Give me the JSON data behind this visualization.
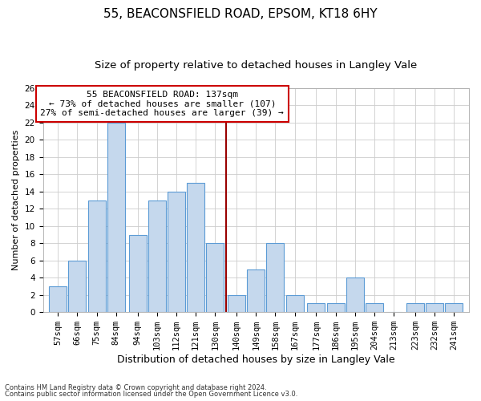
{
  "title1": "55, BEACONSFIELD ROAD, EPSOM, KT18 6HY",
  "title2": "Size of property relative to detached houses in Langley Vale",
  "xlabel": "Distribution of detached houses by size in Langley Vale",
  "ylabel": "Number of detached properties",
  "footnote1": "Contains HM Land Registry data © Crown copyright and database right 2024.",
  "footnote2": "Contains public sector information licensed under the Open Government Licence v3.0.",
  "annotation_line1": "55 BEACONSFIELD ROAD: 137sqm",
  "annotation_line2": "← 73% of detached houses are smaller (107)",
  "annotation_line3": "27% of semi-detached houses are larger (39) →",
  "bar_labels": [
    "57sqm",
    "66sqm",
    "75sqm",
    "84sqm",
    "94sqm",
    "103sqm",
    "112sqm",
    "121sqm",
    "130sqm",
    "140sqm",
    "149sqm",
    "158sqm",
    "167sqm",
    "177sqm",
    "186sqm",
    "195sqm",
    "204sqm",
    "213sqm",
    "223sqm",
    "232sqm",
    "241sqm"
  ],
  "bar_centers": [
    57,
    66,
    75,
    84,
    94,
    103,
    112,
    121,
    130,
    140,
    149,
    158,
    167,
    177,
    186,
    195,
    204,
    213,
    223,
    232,
    241
  ],
  "bar_heights": [
    3,
    6,
    13,
    22,
    9,
    13,
    14,
    15,
    8,
    2,
    5,
    8,
    2,
    1,
    1,
    4,
    1,
    0,
    1,
    1,
    1
  ],
  "bar_color": "#c5d8ed",
  "bar_edge_color": "#5b9bd5",
  "vline_color": "#990000",
  "vline_x": 135,
  "annotation_box_color": "#cc0000",
  "ylim": [
    0,
    26
  ],
  "yticks": [
    0,
    2,
    4,
    6,
    8,
    10,
    12,
    14,
    16,
    18,
    20,
    22,
    24,
    26
  ],
  "grid_color": "#cccccc",
  "bg_color": "#ffffff",
  "title1_fontsize": 11,
  "title2_fontsize": 9.5,
  "xlabel_fontsize": 9,
  "ylabel_fontsize": 8,
  "tick_fontsize": 7.5,
  "annotation_fontsize": 8
}
